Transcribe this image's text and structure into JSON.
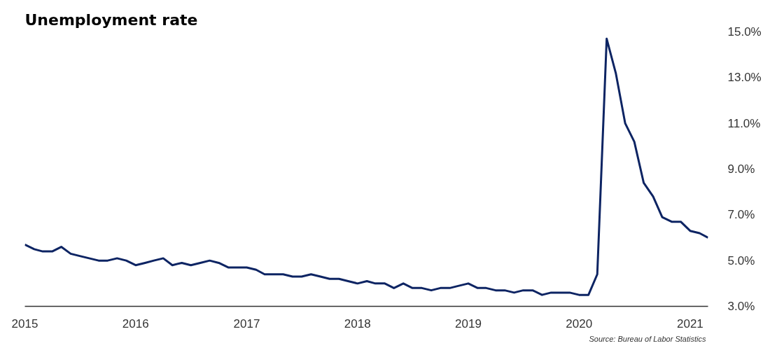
{
  "chart_data": {
    "type": "line",
    "title": "Unemployment rate",
    "x": [
      "2015-01",
      "2015-02",
      "2015-03",
      "2015-04",
      "2015-05",
      "2015-06",
      "2015-07",
      "2015-08",
      "2015-09",
      "2015-10",
      "2015-11",
      "2015-12",
      "2016-01",
      "2016-02",
      "2016-03",
      "2016-04",
      "2016-05",
      "2016-06",
      "2016-07",
      "2016-08",
      "2016-09",
      "2016-10",
      "2016-11",
      "2016-12",
      "2017-01",
      "2017-02",
      "2017-03",
      "2017-04",
      "2017-05",
      "2017-06",
      "2017-07",
      "2017-08",
      "2017-09",
      "2017-10",
      "2017-11",
      "2017-12",
      "2018-01",
      "2018-02",
      "2018-03",
      "2018-04",
      "2018-05",
      "2018-06",
      "2018-07",
      "2018-08",
      "2018-09",
      "2018-10",
      "2018-11",
      "2018-12",
      "2019-01",
      "2019-02",
      "2019-03",
      "2019-04",
      "2019-05",
      "2019-06",
      "2019-07",
      "2019-08",
      "2019-09",
      "2019-10",
      "2019-11",
      "2019-12",
      "2020-01",
      "2020-02",
      "2020-03",
      "2020-04",
      "2020-05",
      "2020-06",
      "2020-07",
      "2020-08",
      "2020-09",
      "2020-10",
      "2020-11",
      "2020-12",
      "2021-01",
      "2021-02",
      "2021-03"
    ],
    "series": [
      {
        "color": "#0d2463",
        "values": [
          5.7,
          5.5,
          5.4,
          5.4,
          5.6,
          5.3,
          5.2,
          5.1,
          5.0,
          5.0,
          5.1,
          5.0,
          4.8,
          4.9,
          5.0,
          5.1,
          4.8,
          4.9,
          4.8,
          4.9,
          5.0,
          4.9,
          4.7,
          4.7,
          4.7,
          4.6,
          4.4,
          4.4,
          4.4,
          4.3,
          4.3,
          4.4,
          4.3,
          4.2,
          4.2,
          4.1,
          4.0,
          4.1,
          4.0,
          4.0,
          3.8,
          4.0,
          3.8,
          3.8,
          3.7,
          3.8,
          3.8,
          3.9,
          4.0,
          3.8,
          3.8,
          3.7,
          3.7,
          3.6,
          3.7,
          3.7,
          3.5,
          3.6,
          3.6,
          3.6,
          3.5,
          3.5,
          4.4,
          14.7,
          13.2,
          11.0,
          10.2,
          8.4,
          7.8,
          6.9,
          6.7,
          6.7,
          6.3,
          6.2,
          6.0
        ]
      }
    ],
    "xlim": [
      "2015-01",
      "2021-03"
    ],
    "xticks": [
      {
        "value": "2015-01",
        "label": "2015"
      },
      {
        "value": "2016-01",
        "label": "2016"
      },
      {
        "value": "2017-01",
        "label": "2017"
      },
      {
        "value": "2018-01",
        "label": "2018"
      },
      {
        "value": "2019-01",
        "label": "2019"
      },
      {
        "value": "2020-01",
        "label": "2020"
      },
      {
        "value": "2021-01",
        "label": "2021"
      }
    ],
    "ylim": [
      3,
      15
    ],
    "yticks": [
      {
        "value": 3,
        "label": "3.0%"
      },
      {
        "value": 5,
        "label": "5.0%"
      },
      {
        "value": 7,
        "label": "7.0%"
      },
      {
        "value": 9,
        "label": "9.0%"
      },
      {
        "value": 11,
        "label": "11.0%"
      },
      {
        "value": 13,
        "label": "13.0%"
      },
      {
        "value": 15,
        "label": "15.0%"
      }
    ],
    "line_style": "solid",
    "annotations": [
      "Source:  Bureau of Labor Statistics"
    ]
  }
}
